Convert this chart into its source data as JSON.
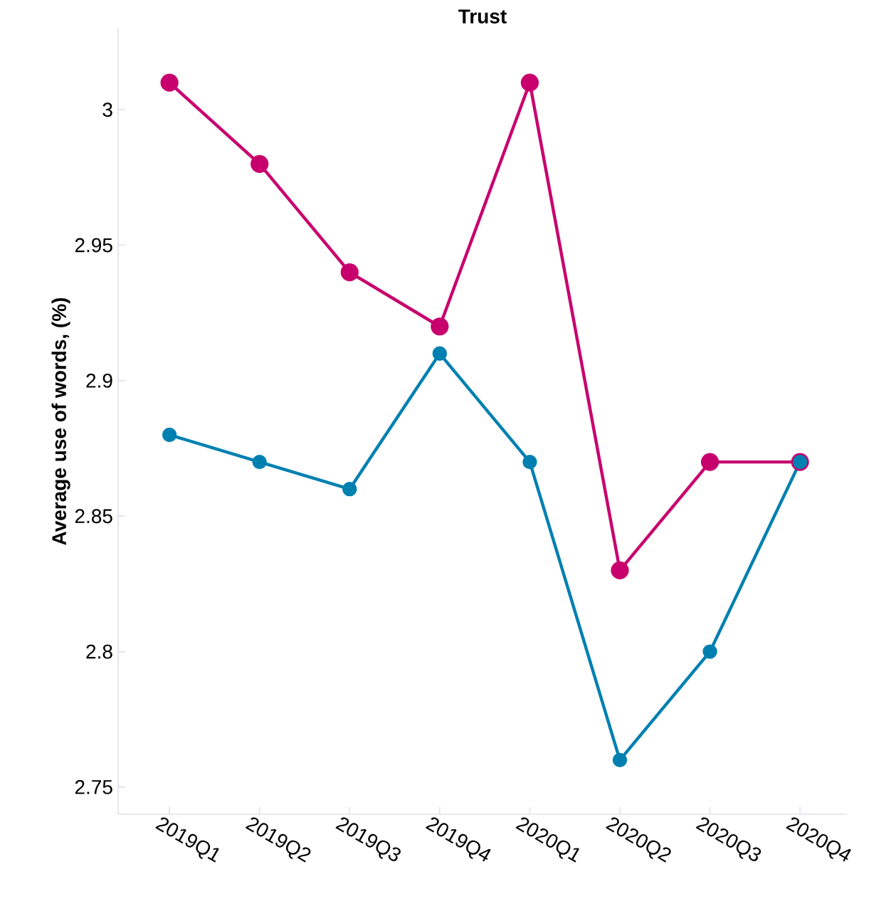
{
  "chart_data": {
    "type": "line",
    "title": "Trust",
    "ylabel": "Average use of words, (%)",
    "categories": [
      "2019Q1",
      "2019Q2",
      "2019Q3",
      "2019Q4",
      "2020Q1",
      "2020Q2",
      "2020Q3",
      "2020Q4"
    ],
    "series": [
      {
        "color": "#c8006e",
        "values": [
          3.01,
          2.98,
          2.94,
          2.92,
          3.01,
          2.83,
          2.87,
          2.87
        ]
      },
      {
        "color": "#0080b0",
        "values": [
          2.88,
          2.87,
          2.86,
          2.91,
          2.87,
          2.76,
          2.8,
          2.87
        ]
      }
    ],
    "ylim": [
      2.74,
      3.03
    ],
    "yticks": [
      2.75,
      2.8,
      2.85,
      2.9,
      2.95,
      3
    ],
    "marker": "circle",
    "line_style": "solid",
    "grid": false,
    "legend": false
  }
}
